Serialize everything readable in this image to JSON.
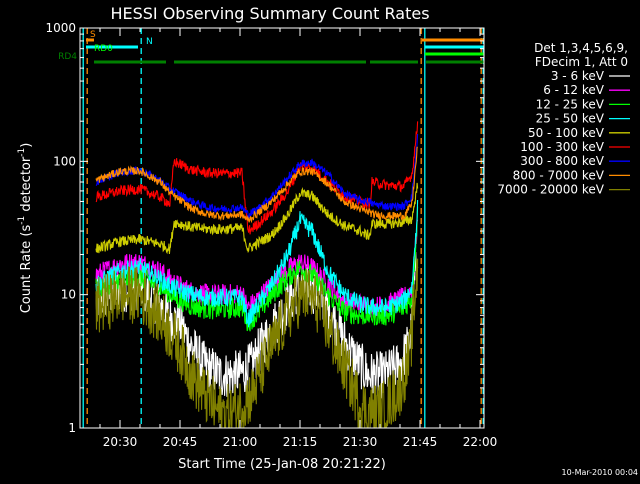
{
  "chart_data": {
    "type": "line",
    "title": "HESSI Observing Summary Count Rates",
    "xlabel": "Start Time (25-Jan-08 20:21:22)",
    "ylabel_main": "Count Rate (s",
    "ylabel_sup1": "-1",
    "ylabel_mid": " detector",
    "ylabel_sup2": "-1",
    "ylabel_end": ")",
    "xlim_minutes": [
      20.0,
      121.0
    ],
    "ylim": [
      1,
      1000
    ],
    "yscale": "log",
    "xticks": [
      {
        "t": 30,
        "label": "20:30"
      },
      {
        "t": 45,
        "label": "20:45"
      },
      {
        "t": 60,
        "label": "21:00"
      },
      {
        "t": 75,
        "label": "21:15"
      },
      {
        "t": 90,
        "label": "21:30"
      },
      {
        "t": 105,
        "label": "21:45"
      },
      {
        "t": 120,
        "label": "22:00"
      }
    ],
    "yticks": [
      {
        "v": 1,
        "label": "1"
      },
      {
        "v": 10,
        "label": "10"
      },
      {
        "v": 100,
        "label": "100"
      },
      {
        "v": 1000,
        "label": "1000"
      }
    ],
    "legend_header": [
      "Det 1,3,4,5,6,9,",
      "FDecim 1, Att 0"
    ],
    "legend_position": "right",
    "footer_date": "10-Mar-2010 00:04",
    "flags": [
      {
        "label": "S",
        "color": "#ff8c00",
        "segments": [
          [
            21.5,
            23.5
          ],
          [
            105.5,
            121
          ]
        ],
        "y": 40
      },
      {
        "label": "N",
        "color": "#00ffff",
        "segments": [
          [
            21.5,
            34.5
          ],
          [
            106.2,
            121
          ]
        ],
        "y": 47
      },
      {
        "label": "RD0",
        "color": "#00ff00",
        "segments": [
          [
            106.2,
            121
          ]
        ],
        "y": 54
      },
      {
        "label": "RD4",
        "color": "#008000",
        "segments": [
          [
            23.5,
            41.5
          ],
          [
            43.5,
            61.5
          ],
          [
            61.5,
            91.5
          ],
          [
            92.5,
            104.5
          ],
          [
            106.5,
            121
          ]
        ],
        "y": 62
      }
    ],
    "vlines": [
      {
        "t": 20.8,
        "color": "#00ffff",
        "style": "solid"
      },
      {
        "t": 21.8,
        "color": "#ff8c00",
        "style": "dashed"
      },
      {
        "t": 35.3,
        "color": "#00ffff",
        "style": "dashed"
      },
      {
        "t": 105.3,
        "color": "#ff8c00",
        "style": "dashed"
      },
      {
        "t": 106.2,
        "color": "#00ffff",
        "style": "solid"
      },
      {
        "t": 120.3,
        "color": "#ff8c00",
        "style": "dashed"
      },
      {
        "t": 120.8,
        "color": "#00ffff",
        "style": "dashed"
      }
    ],
    "series": [
      {
        "name": "3 - 6 keV",
        "color": "#ffffff",
        "noise": 0.18,
        "points": [
          [
            24,
            9
          ],
          [
            30,
            11
          ],
          [
            35,
            11.5
          ],
          [
            39,
            9
          ],
          [
            42,
            7
          ],
          [
            45,
            6
          ],
          [
            48,
            4
          ],
          [
            51,
            3
          ],
          [
            55,
            2.5
          ],
          [
            58,
            2.5
          ],
          [
            60.5,
            2.6
          ],
          [
            63,
            3
          ],
          [
            66,
            4.5
          ],
          [
            70,
            7
          ],
          [
            74,
            10.5
          ],
          [
            77,
            11.5
          ],
          [
            80,
            10
          ],
          [
            84,
            6
          ],
          [
            87,
            4
          ],
          [
            90,
            3
          ],
          [
            92,
            2.5
          ],
          [
            96,
            2.5
          ],
          [
            100,
            3
          ],
          [
            102.5,
            4.5
          ],
          [
            104.5,
            25
          ]
        ]
      },
      {
        "name": "6 - 12 keV",
        "color": "#ff00ff",
        "noise": 0.08,
        "points": [
          [
            24,
            14
          ],
          [
            30,
            17
          ],
          [
            35,
            17.5
          ],
          [
            40,
            15
          ],
          [
            44,
            12
          ],
          [
            48,
            10.5
          ],
          [
            52,
            10
          ],
          [
            56,
            10
          ],
          [
            60.5,
            10.2
          ],
          [
            62,
            8
          ],
          [
            64,
            9
          ],
          [
            68,
            12
          ],
          [
            72,
            15.5
          ],
          [
            75,
            17.5
          ],
          [
            78,
            16
          ],
          [
            82,
            12
          ],
          [
            86,
            9
          ],
          [
            90,
            8.5
          ],
          [
            93,
            8
          ],
          [
            97,
            8.5
          ],
          [
            101,
            9.5
          ],
          [
            103,
            11
          ],
          [
            104.5,
            40
          ]
        ]
      },
      {
        "name": "12 - 25 keV",
        "color": "#00ff00",
        "noise": 0.08,
        "points": [
          [
            24,
            11
          ],
          [
            30,
            13
          ],
          [
            35,
            13.5
          ],
          [
            40,
            11.5
          ],
          [
            44,
            9.5
          ],
          [
            48,
            8.2
          ],
          [
            52,
            7.8
          ],
          [
            56,
            7.8
          ],
          [
            60.5,
            8
          ],
          [
            62,
            6.2
          ],
          [
            64,
            7
          ],
          [
            68,
            10
          ],
          [
            72,
            13.5
          ],
          [
            75,
            16
          ],
          [
            78,
            14
          ],
          [
            82,
            10
          ],
          [
            86,
            7.5
          ],
          [
            90,
            7
          ],
          [
            93,
            7
          ],
          [
            97,
            7
          ],
          [
            101,
            8
          ],
          [
            103,
            9.5
          ],
          [
            104.5,
            45
          ]
        ]
      },
      {
        "name": "25 - 50 keV",
        "color": "#00ffff",
        "noise": 0.07,
        "points": [
          [
            24,
            12
          ],
          [
            30,
            15
          ],
          [
            35,
            16
          ],
          [
            40,
            13
          ],
          [
            44,
            11
          ],
          [
            48,
            10
          ],
          [
            52,
            9.5
          ],
          [
            56,
            9.5
          ],
          [
            60.5,
            9.5
          ],
          [
            62,
            6.5
          ],
          [
            64,
            8
          ],
          [
            68,
            12
          ],
          [
            72,
            20
          ],
          [
            75,
            36
          ],
          [
            78,
            30
          ],
          [
            82,
            15
          ],
          [
            86,
            10
          ],
          [
            90,
            8.5
          ],
          [
            93,
            8
          ],
          [
            97,
            8
          ],
          [
            101,
            9
          ],
          [
            103,
            11.5
          ],
          [
            104.5,
            50
          ]
        ]
      },
      {
        "name": "50 - 100 keV",
        "color": "#cccc00",
        "noise": 0.04,
        "points": [
          [
            24,
            22
          ],
          [
            30,
            25
          ],
          [
            35,
            26
          ],
          [
            40,
            24
          ],
          [
            42.5,
            22
          ],
          [
            43.5,
            35
          ],
          [
            48,
            32
          ],
          [
            52,
            31
          ],
          [
            56,
            31
          ],
          [
            60.5,
            31.5
          ],
          [
            62,
            22
          ],
          [
            64,
            24
          ],
          [
            68,
            28
          ],
          [
            72,
            40
          ],
          [
            75,
            58
          ],
          [
            78,
            55
          ],
          [
            82,
            40
          ],
          [
            86,
            33
          ],
          [
            90,
            30
          ],
          [
            91.5,
            28
          ],
          [
            92.5,
            28
          ],
          [
            93,
            34
          ],
          [
            97,
            34
          ],
          [
            101,
            35
          ],
          [
            103,
            37
          ],
          [
            104.5,
            70
          ]
        ]
      },
      {
        "name": "100 - 300 keV",
        "color": "#ff0000",
        "noise": 0.04,
        "points": [
          [
            24,
            54
          ],
          [
            30,
            60
          ],
          [
            35,
            62
          ],
          [
            40,
            54
          ],
          [
            42.5,
            48
          ],
          [
            43.5,
            100
          ],
          [
            48,
            86
          ],
          [
            52,
            82
          ],
          [
            56,
            81
          ],
          [
            60.5,
            82
          ],
          [
            62,
            30
          ],
          [
            64,
            33
          ],
          [
            68,
            42
          ],
          [
            72,
            60
          ],
          [
            75,
            92
          ],
          [
            78,
            90
          ],
          [
            82,
            70
          ],
          [
            86,
            55
          ],
          [
            90,
            50
          ],
          [
            91.5,
            48
          ],
          [
            92.5,
            48
          ],
          [
            93,
            70
          ],
          [
            97,
            66
          ],
          [
            101,
            65
          ],
          [
            103,
            80
          ],
          [
            104.5,
            205
          ]
        ]
      },
      {
        "name": "300 - 800 keV",
        "color": "#0000ff",
        "noise": 0.03,
        "points": [
          [
            24,
            70
          ],
          [
            30,
            83
          ],
          [
            35,
            86
          ],
          [
            40,
            72
          ],
          [
            42.5,
            62
          ],
          [
            43.5,
            60
          ],
          [
            48,
            50
          ],
          [
            52,
            45
          ],
          [
            56,
            44
          ],
          [
            60.5,
            45
          ],
          [
            62,
            40
          ],
          [
            64,
            43
          ],
          [
            68,
            55
          ],
          [
            72,
            75
          ],
          [
            75,
            96
          ],
          [
            78,
            98
          ],
          [
            82,
            80
          ],
          [
            86,
            58
          ],
          [
            90,
            51
          ],
          [
            91.5,
            50
          ],
          [
            92.5,
            50
          ],
          [
            93,
            48
          ],
          [
            97,
            46
          ],
          [
            101,
            46
          ],
          [
            103,
            55
          ],
          [
            104.5,
            170
          ]
        ]
      },
      {
        "name": "800 - 7000 keV",
        "color": "#ff8c00",
        "noise": 0.03,
        "points": [
          [
            24,
            72
          ],
          [
            30,
            84
          ],
          [
            35,
            85
          ],
          [
            40,
            70
          ],
          [
            42.5,
            58
          ],
          [
            43.5,
            55
          ],
          [
            48,
            44
          ],
          [
            52,
            40
          ],
          [
            56,
            39
          ],
          [
            60.5,
            40
          ],
          [
            62,
            36
          ],
          [
            64,
            40
          ],
          [
            68,
            50
          ],
          [
            72,
            68
          ],
          [
            75,
            84
          ],
          [
            78,
            84
          ],
          [
            82,
            68
          ],
          [
            86,
            50
          ],
          [
            90,
            44
          ],
          [
            91.5,
            42
          ],
          [
            92.5,
            42
          ],
          [
            93,
            40
          ],
          [
            97,
            39
          ],
          [
            101,
            39
          ],
          [
            103,
            48
          ],
          [
            104.5,
            140
          ]
        ]
      },
      {
        "name": "7000 - 20000 keV",
        "color": "#808000",
        "noise": 0.22,
        "points": [
          [
            24,
            8
          ],
          [
            30,
            10
          ],
          [
            35,
            10
          ],
          [
            39,
            7.5
          ],
          [
            42,
            5.5
          ],
          [
            45,
            4
          ],
          [
            48,
            2.5
          ],
          [
            51,
            1.8
          ],
          [
            55,
            1.3
          ],
          [
            58,
            1.3
          ],
          [
            60.5,
            1.5
          ],
          [
            63,
            1.8
          ],
          [
            66,
            3
          ],
          [
            70,
            5.5
          ],
          [
            74,
            9
          ],
          [
            77,
            10
          ],
          [
            80,
            8
          ],
          [
            84,
            4
          ],
          [
            87,
            2.5
          ],
          [
            90,
            1.5
          ],
          [
            92,
            1.3
          ],
          [
            96,
            1.4
          ],
          [
            100,
            2
          ],
          [
            102.5,
            3.5
          ],
          [
            104.5,
            18
          ]
        ]
      }
    ]
  }
}
